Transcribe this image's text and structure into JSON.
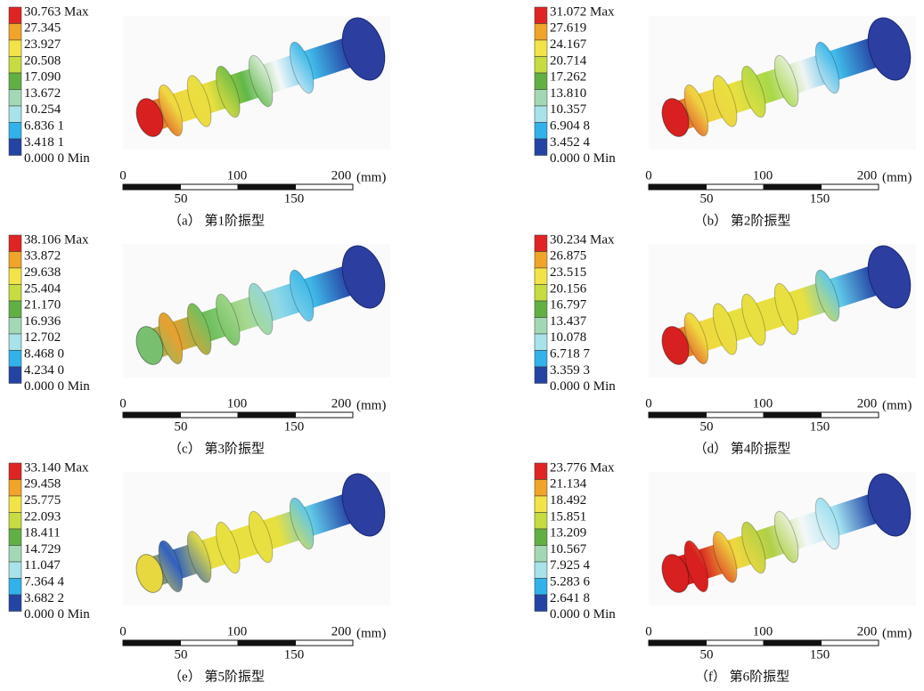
{
  "panels": [
    {
      "legend": [
        "30.763 Max",
        "27.345",
        "23.927",
        "20.508",
        "17.090",
        "13.672",
        "10.254",
        "6.836 1",
        "3.418 1",
        "0.000 0 Min"
      ],
      "scale": {
        "top": [
          "0",
          "100",
          "200"
        ],
        "bottom": [
          "50",
          "150"
        ],
        "unit": "(mm)"
      },
      "caption": "（a） 第1阶振型"
    },
    {
      "legend": [
        "31.072 Max",
        "27.619",
        "24.167",
        "20.714",
        "17.262",
        "13.810",
        "10.357",
        "6.904 8",
        "3.452 4",
        "0.000 0 Min"
      ],
      "scale": {
        "top": [
          "0",
          "100",
          "200"
        ],
        "bottom": [
          "50",
          "150"
        ],
        "unit": "(mm)"
      },
      "caption": "（b） 第2阶振型"
    },
    {
      "legend": [
        "38.106 Max",
        "33.872",
        "29.638",
        "25.404",
        "21.170",
        "16.936",
        "12.702",
        "8.468 0",
        "4.234 0",
        "0.000 0 Min"
      ],
      "scale": {
        "top": [
          "0",
          "100",
          "200"
        ],
        "bottom": [
          "50",
          "150"
        ],
        "unit": "(mm)"
      },
      "caption": "（c） 第3阶振型"
    },
    {
      "legend": [
        "30.234 Max",
        "26.875",
        "23.515",
        "20.156",
        "16.797",
        "13.437",
        "10.078",
        "6.718 7",
        "3.359 3",
        "0.000 0 Min"
      ],
      "scale": {
        "top": [
          "0",
          "100",
          "200"
        ],
        "bottom": [
          "50",
          "150"
        ],
        "unit": "(mm)"
      },
      "caption": "（d） 第4阶振型"
    },
    {
      "legend": [
        "33.140 Max",
        "29.458",
        "25.775",
        "22.093",
        "18.411",
        "14.729",
        "11.047",
        "7.364 4",
        "3.682 2",
        "0.000 0 Min"
      ],
      "scale": {
        "top": [
          "0",
          "100",
          "200"
        ],
        "bottom": [
          "50",
          "150"
        ],
        "unit": "(mm)"
      },
      "caption": "（e） 第5阶振型"
    },
    {
      "legend": [
        "23.776 Max",
        "21.134",
        "18.492",
        "15.851",
        "13.209",
        "10.567",
        "7.925 4",
        "5.283 6",
        "2.641 8",
        "0.000 0 Min"
      ],
      "scale": {
        "top": [
          "0",
          "100",
          "200"
        ],
        "bottom": [
          "50",
          "150"
        ],
        "unit": "(mm)"
      },
      "caption": "（f） 第6阶振型"
    }
  ]
}
